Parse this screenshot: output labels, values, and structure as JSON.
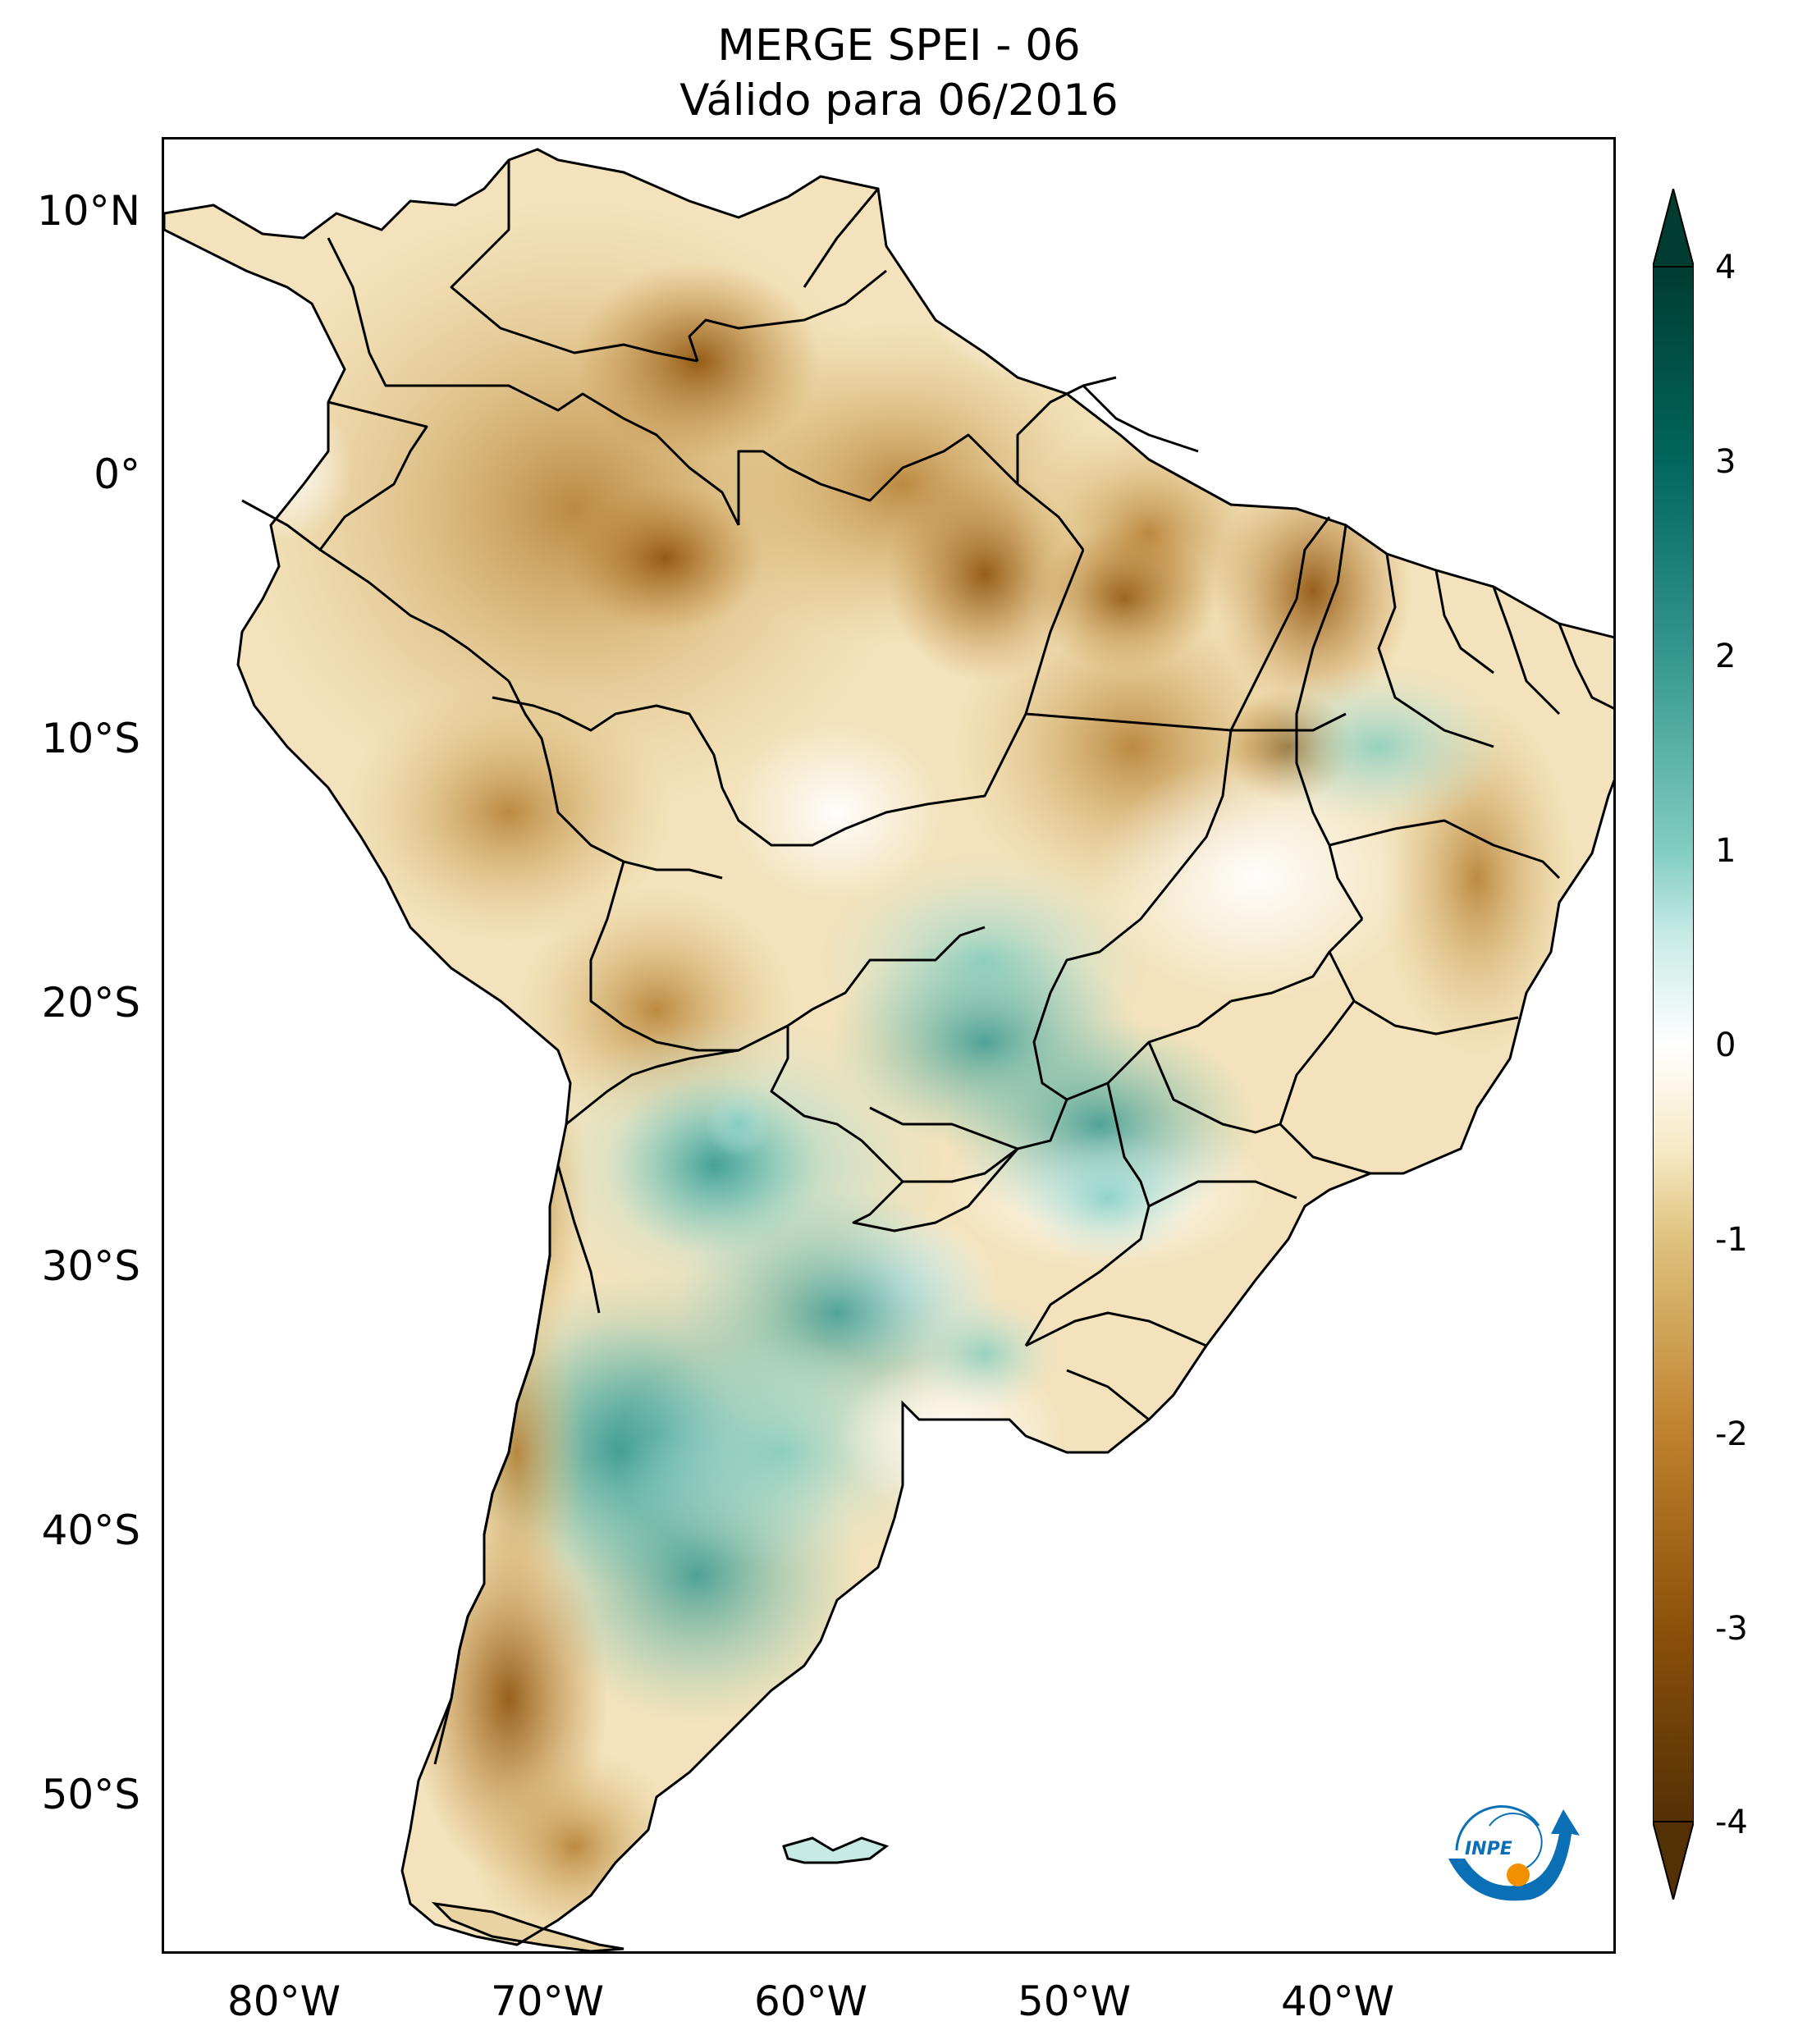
{
  "title": {
    "line1": "MERGE   SPEI - 06",
    "line2": "Válido para 06/2016"
  },
  "map": {
    "region": "South America",
    "projection": "PlateCarree",
    "lon_range": [
      -85,
      -30
    ],
    "lat_range": [
      -56,
      13
    ],
    "latitude_labels": [
      "10°N",
      "0°",
      "10°S",
      "20°S",
      "30°S",
      "40°S",
      "50°S"
    ],
    "latitude_values": [
      10,
      0,
      -10,
      -20,
      -30,
      -40,
      -50
    ],
    "longitude_labels": [
      "80°W",
      "70°W",
      "60°W",
      "50°W",
      "40°W"
    ],
    "longitude_values": [
      -80,
      -70,
      -60,
      -50,
      -40
    ],
    "border_color": "#000000",
    "ocean_color": "#ffffff"
  },
  "colorbar": {
    "colormap": "BrBG",
    "min": -4,
    "max": 4,
    "extend": "both",
    "tick_labels": [
      "4",
      "3",
      "2",
      "1",
      "0",
      "-1",
      "-2",
      "-3",
      "-4"
    ],
    "tick_values": [
      4,
      3,
      2,
      1,
      0,
      -1,
      -2,
      -3,
      -4
    ],
    "colors": {
      "-4": "#543005",
      "-3": "#8c510a",
      "-2": "#bf812d",
      "-1": "#dfc27d",
      "-0.5": "#f6e8c3",
      "0": "#f5f5f5",
      "0.5": "#c7eae5",
      "1": "#80cdc1",
      "2": "#35978f",
      "3": "#01665e",
      "4": "#003c30"
    }
  },
  "logo": {
    "text": "INPE",
    "colors": {
      "arc": "#0a6fb5",
      "sun": "#f29100"
    }
  }
}
